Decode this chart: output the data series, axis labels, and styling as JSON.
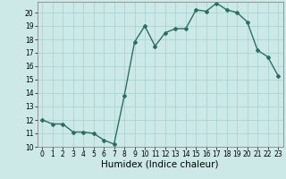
{
  "x": [
    0,
    1,
    2,
    3,
    4,
    5,
    6,
    7,
    8,
    9,
    10,
    11,
    12,
    13,
    14,
    15,
    16,
    17,
    18,
    19,
    20,
    21,
    22,
    23
  ],
  "y": [
    12.0,
    11.7,
    11.7,
    11.1,
    11.1,
    11.0,
    10.5,
    10.2,
    13.8,
    17.8,
    19.0,
    17.5,
    18.5,
    18.8,
    18.8,
    20.2,
    20.1,
    20.7,
    20.2,
    20.0,
    19.3,
    17.2,
    16.7,
    15.3
  ],
  "line_color": "#2d6e63",
  "marker": "D",
  "marker_size": 2.0,
  "bg_color": "#cce9e8",
  "grid_color": "#aad4d2",
  "xlabel": "Humidex (Indice chaleur)",
  "xlim": [
    -0.5,
    23.5
  ],
  "ylim": [
    10,
    20.8
  ],
  "yticks": [
    10,
    11,
    12,
    13,
    14,
    15,
    16,
    17,
    18,
    19,
    20
  ],
  "xticks": [
    0,
    1,
    2,
    3,
    4,
    5,
    6,
    7,
    8,
    9,
    10,
    11,
    12,
    13,
    14,
    15,
    16,
    17,
    18,
    19,
    20,
    21,
    22,
    23
  ],
  "tick_fontsize": 5.5,
  "xlabel_fontsize": 7.5,
  "line_width": 1.0
}
